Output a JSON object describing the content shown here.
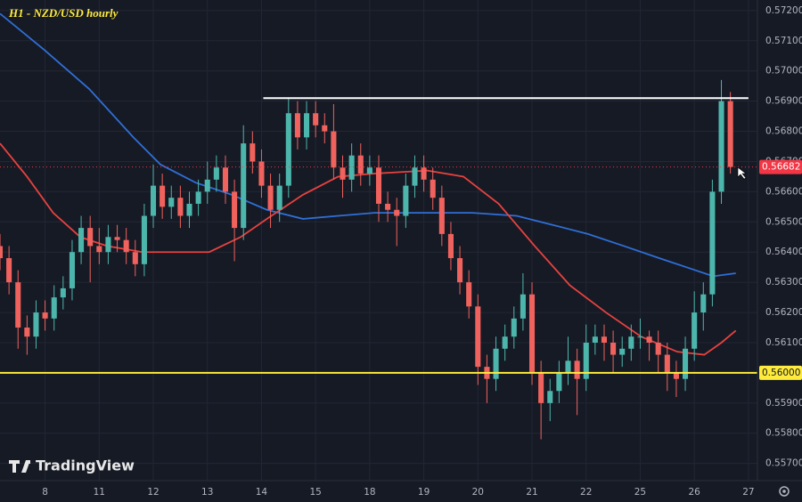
{
  "chart_data": {
    "type": "candlestick",
    "title": "H1 - NZD/USD hourly",
    "branding": "TradingView",
    "up_color": "#4db6ac",
    "down_color": "#f0625d",
    "grid": true,
    "xlim": [
      0,
      84
    ],
    "ylim": [
      0.55643,
      0.57235
    ],
    "xticks": [
      {
        "value": 5,
        "label": "8"
      },
      {
        "value": 11,
        "label": "11"
      },
      {
        "value": 17,
        "label": "12"
      },
      {
        "value": 23,
        "label": "13"
      },
      {
        "value": 29,
        "label": "14"
      },
      {
        "value": 35,
        "label": "15"
      },
      {
        "value": 41,
        "label": "18"
      },
      {
        "value": 47,
        "label": "19"
      },
      {
        "value": 53,
        "label": "20"
      },
      {
        "value": 59,
        "label": "21"
      },
      {
        "value": 65,
        "label": "22"
      },
      {
        "value": 71,
        "label": "25"
      },
      {
        "value": 77,
        "label": "26"
      },
      {
        "value": 83,
        "label": "27"
      }
    ],
    "yticks": [
      {
        "value": 0.557,
        "label": "0.55700"
      },
      {
        "value": 0.558,
        "label": "0.55800"
      },
      {
        "value": 0.559,
        "label": "0.55900"
      },
      {
        "value": 0.56,
        "label": "0.56000"
      },
      {
        "value": 0.561,
        "label": "0.56100"
      },
      {
        "value": 0.562,
        "label": "0.56200"
      },
      {
        "value": 0.563,
        "label": "0.56300"
      },
      {
        "value": 0.564,
        "label": "0.56400"
      },
      {
        "value": 0.565,
        "label": "0.56500"
      },
      {
        "value": 0.566,
        "label": "0.56600"
      },
      {
        "value": 0.567,
        "label": "0.56700"
      },
      {
        "value": 0.568,
        "label": "0.56800"
      },
      {
        "value": 0.569,
        "label": "0.56900"
      },
      {
        "value": 0.57,
        "label": "0.57000"
      },
      {
        "value": 0.571,
        "label": "0.57100"
      },
      {
        "value": 0.572,
        "label": "0.57200"
      }
    ],
    "open": [
      0.5642,
      0.5638,
      0.563,
      0.5615,
      0.5612,
      0.562,
      0.5618,
      0.5625,
      0.5628,
      0.564,
      0.5648,
      0.5642,
      0.564,
      0.5645,
      0.5644,
      0.564,
      0.5636,
      0.5652,
      0.5662,
      0.5655,
      0.5658,
      0.5652,
      0.5656,
      0.566,
      0.5664,
      0.5668,
      0.566,
      0.5648,
      0.5676,
      0.567,
      0.5662,
      0.5654,
      0.5662,
      0.5686,
      0.5678,
      0.5686,
      0.5682,
      0.568,
      0.5668,
      0.5664,
      0.5672,
      0.5666,
      0.5668,
      0.5656,
      0.5654,
      0.5652,
      0.5662,
      0.5668,
      0.5664,
      0.5658,
      0.5646,
      0.5638,
      0.563,
      0.5622,
      0.5602,
      0.5598,
      0.5608,
      0.5612,
      0.5618,
      0.5626,
      0.56,
      0.559,
      0.5594,
      0.56,
      0.5604,
      0.5598,
      0.561,
      0.5612,
      0.561,
      0.5606,
      0.5608,
      0.5612,
      0.5612,
      0.561,
      0.5606,
      0.56,
      0.5598,
      0.5608,
      0.562,
      0.5626,
      0.566,
      0.569
    ],
    "high": [
      0.5646,
      0.5642,
      0.5634,
      0.5619,
      0.5624,
      0.5624,
      0.5629,
      0.5632,
      0.5644,
      0.5652,
      0.5652,
      0.5648,
      0.5649,
      0.5649,
      0.5648,
      0.5644,
      0.5656,
      0.5669,
      0.5666,
      0.5662,
      0.5662,
      0.566,
      0.5664,
      0.567,
      0.5672,
      0.5672,
      0.5664,
      0.5682,
      0.568,
      0.5674,
      0.5666,
      0.5666,
      0.5691,
      0.569,
      0.569,
      0.569,
      0.5686,
      0.5689,
      0.5672,
      0.5676,
      0.5676,
      0.5672,
      0.5672,
      0.566,
      0.5658,
      0.5666,
      0.5672,
      0.5672,
      0.5668,
      0.5662,
      0.565,
      0.5642,
      0.5634,
      0.5626,
      0.5606,
      0.5612,
      0.5616,
      0.5622,
      0.5633,
      0.563,
      0.5604,
      0.5598,
      0.5604,
      0.5612,
      0.5608,
      0.5616,
      0.5616,
      0.5616,
      0.5614,
      0.5612,
      0.5616,
      0.5618,
      0.5614,
      0.5614,
      0.561,
      0.5604,
      0.5612,
      0.5627,
      0.563,
      0.5664,
      0.5697,
      0.5693
    ],
    "low": [
      0.5634,
      0.5626,
      0.5608,
      0.5606,
      0.5608,
      0.5614,
      0.5614,
      0.5621,
      0.5624,
      0.5636,
      0.563,
      0.5636,
      0.5636,
      0.564,
      0.5636,
      0.5632,
      0.5632,
      0.5648,
      0.5651,
      0.5651,
      0.5648,
      0.5648,
      0.5652,
      0.5656,
      0.566,
      0.5656,
      0.5637,
      0.5644,
      0.5666,
      0.5658,
      0.5648,
      0.565,
      0.5658,
      0.5674,
      0.5674,
      0.5678,
      0.5676,
      0.5664,
      0.5658,
      0.566,
      0.5662,
      0.5662,
      0.565,
      0.565,
      0.5642,
      0.5648,
      0.5658,
      0.566,
      0.5654,
      0.5642,
      0.5634,
      0.5626,
      0.5618,
      0.5596,
      0.559,
      0.5594,
      0.5604,
      0.5608,
      0.5614,
      0.5596,
      0.5578,
      0.5584,
      0.559,
      0.5596,
      0.5586,
      0.5594,
      0.5606,
      0.5604,
      0.56,
      0.5602,
      0.5604,
      0.5608,
      0.5604,
      0.56,
      0.5594,
      0.5592,
      0.5594,
      0.5604,
      0.5614,
      0.5622,
      0.5656,
      0.5666
    ],
    "close": [
      0.5638,
      0.563,
      0.5615,
      0.5612,
      0.562,
      0.5618,
      0.5625,
      0.5628,
      0.564,
      0.5648,
      0.5642,
      0.564,
      0.5645,
      0.5644,
      0.564,
      0.5636,
      0.5652,
      0.5662,
      0.5655,
      0.5658,
      0.5652,
      0.5656,
      0.566,
      0.5664,
      0.5668,
      0.566,
      0.5648,
      0.5676,
      0.567,
      0.5662,
      0.5654,
      0.5662,
      0.5686,
      0.5678,
      0.5686,
      0.5682,
      0.568,
      0.5668,
      0.5664,
      0.5672,
      0.5666,
      0.5668,
      0.5656,
      0.5654,
      0.5652,
      0.5662,
      0.5668,
      0.5664,
      0.5658,
      0.5646,
      0.5638,
      0.563,
      0.5622,
      0.5602,
      0.5598,
      0.5608,
      0.5612,
      0.5618,
      0.5626,
      0.56,
      0.559,
      0.5594,
      0.56,
      0.5604,
      0.5598,
      0.561,
      0.5612,
      0.561,
      0.5606,
      0.5608,
      0.5612,
      0.5612,
      0.561,
      0.5606,
      0.56,
      0.5598,
      0.5608,
      0.562,
      0.5626,
      0.566,
      0.569,
      0.56682
    ],
    "lines": [
      {
        "color": "#2f6fd6",
        "x": [
          0,
          4.9,
          9.9,
          14.8,
          17.8,
          21.7,
          25.7,
          29.6,
          33.6,
          37.5,
          41.5,
          47.4,
          52.4,
          57.3,
          61.3,
          65.2,
          69.2,
          73.1,
          77.1,
          79.1,
          81.6
        ],
        "values": [
          0.5719,
          0.5707,
          0.5694,
          0.5678,
          0.5669,
          0.5663,
          0.5659,
          0.5654,
          0.5651,
          0.5652,
          0.5653,
          0.5653,
          0.5653,
          0.5652,
          0.5649,
          0.5646,
          0.5642,
          0.5638,
          0.5634,
          0.5632,
          0.5633
        ]
      },
      {
        "color": "#e8423f",
        "x": [
          0,
          3,
          5.9,
          8.9,
          11.9,
          15.8,
          19.8,
          23.2,
          26.7,
          29.6,
          33.6,
          37.5,
          41.5,
          47.4,
          51.4,
          55.3,
          59.3,
          63.2,
          67.2,
          71.1,
          75.1,
          78.1,
          80,
          81.6
        ],
        "values": [
          0.5676,
          0.5665,
          0.5653,
          0.5645,
          0.5642,
          0.564,
          0.564,
          0.564,
          0.5645,
          0.5651,
          0.5659,
          0.5665,
          0.5666,
          0.5667,
          0.5665,
          0.5656,
          0.5642,
          0.5629,
          0.562,
          0.5612,
          0.5607,
          0.5606,
          0.561,
          0.5614
        ]
      }
    ],
    "hlines": [
      {
        "value": 0.5691,
        "color": "#ffffff",
        "x_range": [
          29.2,
          83
        ]
      },
      {
        "value": 0.56,
        "color": "#ffeb3b",
        "label": "0.56000"
      }
    ],
    "last_price": {
      "value": 0.56682,
      "label": "0.56682",
      "color": "#f23645"
    }
  }
}
